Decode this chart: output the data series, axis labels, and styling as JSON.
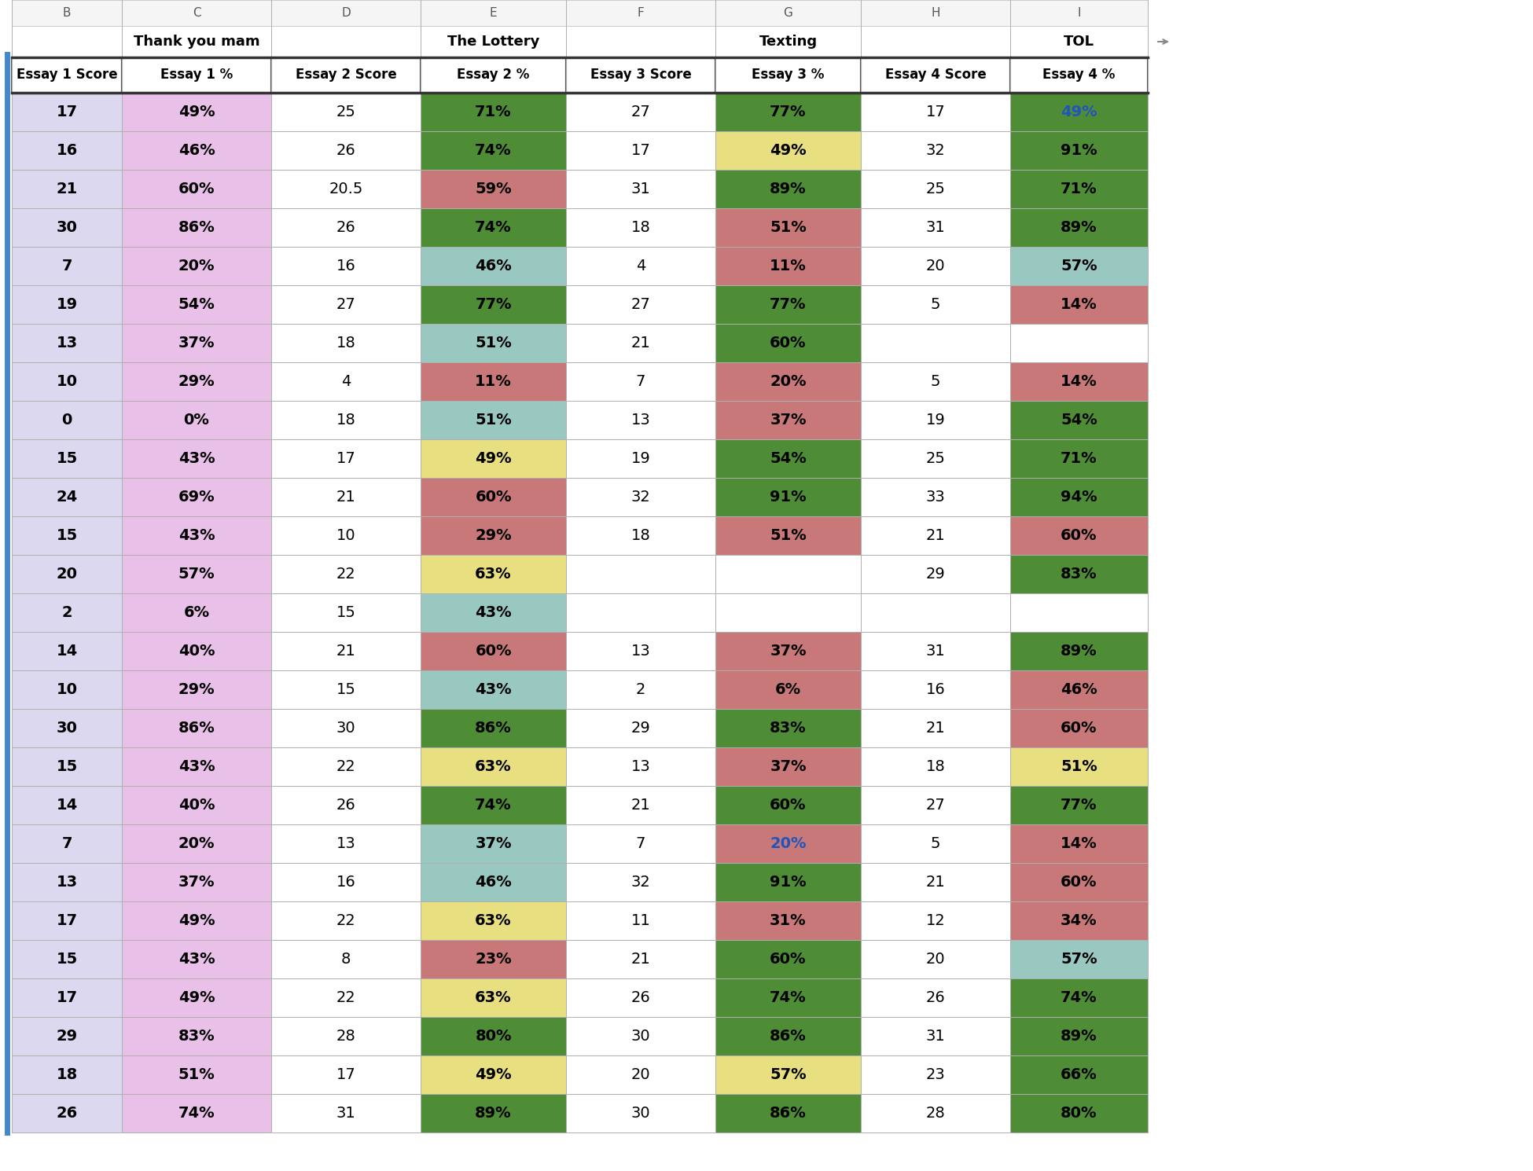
{
  "col_letters": [
    "B",
    "C",
    "D",
    "E",
    "F",
    "G",
    "H",
    "I"
  ],
  "group_headers": [
    {
      "text": "",
      "span": [
        0,
        1
      ]
    },
    {
      "text": "Thank you mam",
      "span": [
        1,
        2
      ]
    },
    {
      "text": "",
      "span": [
        2,
        3
      ]
    },
    {
      "text": "The Lottery",
      "span": [
        3,
        4
      ]
    },
    {
      "text": "",
      "span": [
        4,
        5
      ]
    },
    {
      "text": "Texting",
      "span": [
        5,
        6
      ]
    },
    {
      "text": "",
      "span": [
        6,
        7
      ]
    },
    {
      "text": "TOL",
      "span": [
        7,
        8
      ]
    }
  ],
  "col_headers": [
    "Essay 1 Score",
    "Essay 1 %",
    "Essay 2 Score",
    "Essay 2 %",
    "Essay 3 Score",
    "Essay 3 %",
    "Essay 4 Score",
    "Essay 4 %"
  ],
  "rows": [
    [
      "17",
      "49%",
      "25",
      "71%",
      "27",
      "77%",
      "17",
      "49%"
    ],
    [
      "16",
      "46%",
      "26",
      "74%",
      "17",
      "49%",
      "32",
      "91%"
    ],
    [
      "21",
      "60%",
      "20.5",
      "59%",
      "31",
      "89%",
      "25",
      "71%"
    ],
    [
      "30",
      "86%",
      "26",
      "74%",
      "18",
      "51%",
      "31",
      "89%"
    ],
    [
      "7",
      "20%",
      "16",
      "46%",
      "4",
      "11%",
      "20",
      "57%"
    ],
    [
      "19",
      "54%",
      "27",
      "77%",
      "27",
      "77%",
      "5",
      "14%"
    ],
    [
      "13",
      "37%",
      "18",
      "51%",
      "21",
      "60%",
      "",
      ""
    ],
    [
      "10",
      "29%",
      "4",
      "11%",
      "7",
      "20%",
      "5",
      "14%"
    ],
    [
      "0",
      "0%",
      "18",
      "51%",
      "13",
      "37%",
      "19",
      "54%"
    ],
    [
      "15",
      "43%",
      "17",
      "49%",
      "19",
      "54%",
      "25",
      "71%"
    ],
    [
      "24",
      "69%",
      "21",
      "60%",
      "32",
      "91%",
      "33",
      "94%"
    ],
    [
      "15",
      "43%",
      "10",
      "29%",
      "18",
      "51%",
      "21",
      "60%"
    ],
    [
      "20",
      "57%",
      "22",
      "63%",
      "",
      "",
      "29",
      "83%"
    ],
    [
      "2",
      "6%",
      "15",
      "43%",
      "",
      "",
      "",
      ""
    ],
    [
      "14",
      "40%",
      "21",
      "60%",
      "13",
      "37%",
      "31",
      "89%"
    ],
    [
      "10",
      "29%",
      "15",
      "43%",
      "2",
      "6%",
      "16",
      "46%"
    ],
    [
      "30",
      "86%",
      "30",
      "86%",
      "29",
      "83%",
      "21",
      "60%"
    ],
    [
      "15",
      "43%",
      "22",
      "63%",
      "13",
      "37%",
      "18",
      "51%"
    ],
    [
      "14",
      "40%",
      "26",
      "74%",
      "21",
      "60%",
      "27",
      "77%"
    ],
    [
      "7",
      "20%",
      "13",
      "37%",
      "7",
      "20%",
      "5",
      "14%"
    ],
    [
      "13",
      "37%",
      "16",
      "46%",
      "32",
      "91%",
      "21",
      "60%"
    ],
    [
      "17",
      "49%",
      "22",
      "63%",
      "11",
      "31%",
      "12",
      "34%"
    ],
    [
      "15",
      "43%",
      "8",
      "23%",
      "21",
      "60%",
      "20",
      "57%"
    ],
    [
      "17",
      "49%",
      "22",
      "63%",
      "26",
      "74%",
      "26",
      "74%"
    ],
    [
      "29",
      "83%",
      "28",
      "80%",
      "30",
      "86%",
      "31",
      "89%"
    ],
    [
      "18",
      "51%",
      "17",
      "49%",
      "20",
      "57%",
      "23",
      "66%"
    ],
    [
      "26",
      "74%",
      "31",
      "89%",
      "30",
      "86%",
      "28",
      "80%"
    ]
  ],
  "special_blue_text": [
    [
      0,
      7
    ],
    [
      19,
      5
    ]
  ],
  "col1_bg": "#dcd8f0",
  "col2_bg": "#e8c8e8",
  "col3_bg": "#ffffff",
  "essay2_pct_colors": {
    "71%": "#4e8c35",
    "74%": "#4e8c35",
    "77%": "#4e8c35",
    "86%": "#4e8c35",
    "80%": "#4e8c35",
    "89%": "#4e8c35",
    "59%": "#c87878",
    "11%": "#c87878",
    "60%": "#c87878",
    "29%": "#c87878",
    "23%": "#c87878",
    "46%": "#98c8c0",
    "51%": "#98c8c0",
    "43%": "#98c8c0",
    "37%": "#98c8c0",
    "49%": "#e8e080",
    "63%": "#e8e080"
  },
  "essay3_pct_colors": {
    "77%": "#4e8c35",
    "89%": "#4e8c35",
    "60%": "#4e8c35",
    "54%": "#4e8c35",
    "91%": "#4e8c35",
    "83%": "#4e8c35",
    "74%": "#4e8c35",
    "86%": "#4e8c35",
    "49%": "#e8e080",
    "57%": "#e8e080",
    "51%": "#c87878",
    "11%": "#c87878",
    "20%": "#c87878",
    "37%": "#c87878",
    "6%": "#c87878",
    "31%": "#c87878"
  },
  "essay4_pct_colors": {
    "49%": "#4e8c35",
    "91%": "#4e8c35",
    "71%": "#4e8c35",
    "89%": "#4e8c35",
    "54%": "#4e8c35",
    "94%": "#4e8c35",
    "83%": "#4e8c35",
    "77%": "#4e8c35",
    "74%": "#4e8c35",
    "80%": "#4e8c35",
    "66%": "#4e8c35",
    "57%": "#98c8c0",
    "14%": "#c87878",
    "60%": "#c87878",
    "46%": "#c87878",
    "34%": "#c87878",
    "51%": "#e8e080"
  }
}
